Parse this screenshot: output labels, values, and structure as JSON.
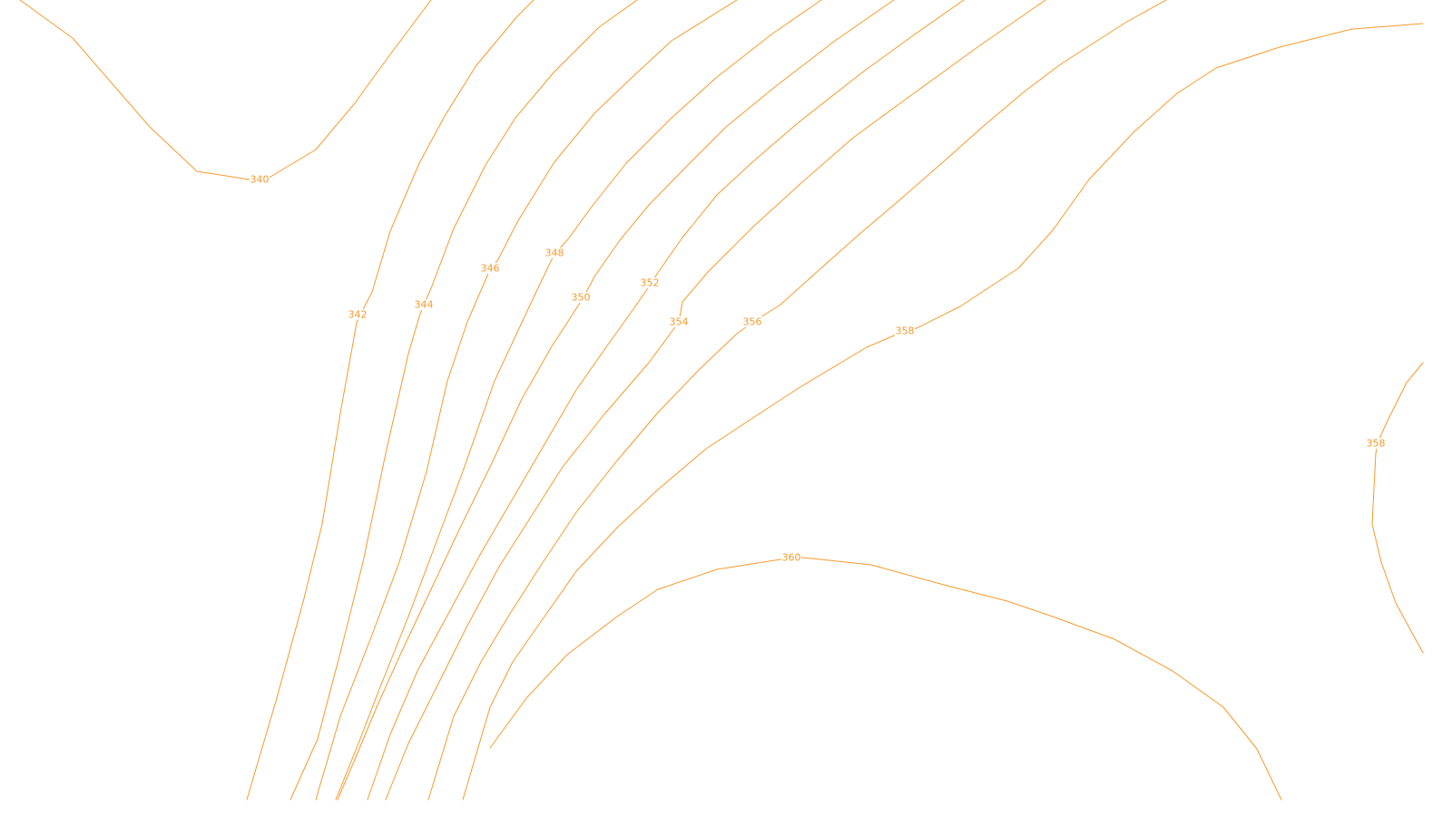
{
  "map": {
    "contour_color": "#f59a2c",
    "background_color": "#ffffff",
    "contours": [
      {
        "id": "c340",
        "label": "340"
      },
      {
        "id": "c342",
        "label": "342"
      },
      {
        "id": "c344",
        "label": "344"
      },
      {
        "id": "c346",
        "label": "346"
      },
      {
        "id": "c348",
        "label": "348"
      },
      {
        "id": "c350",
        "label": "350"
      },
      {
        "id": "c352",
        "label": "352"
      },
      {
        "id": "c354",
        "label": "354"
      },
      {
        "id": "c356",
        "label": "356"
      },
      {
        "id": "c358",
        "label": "358"
      },
      {
        "id": "c358b",
        "label": "358"
      },
      {
        "id": "c360",
        "label": "360"
      }
    ]
  }
}
